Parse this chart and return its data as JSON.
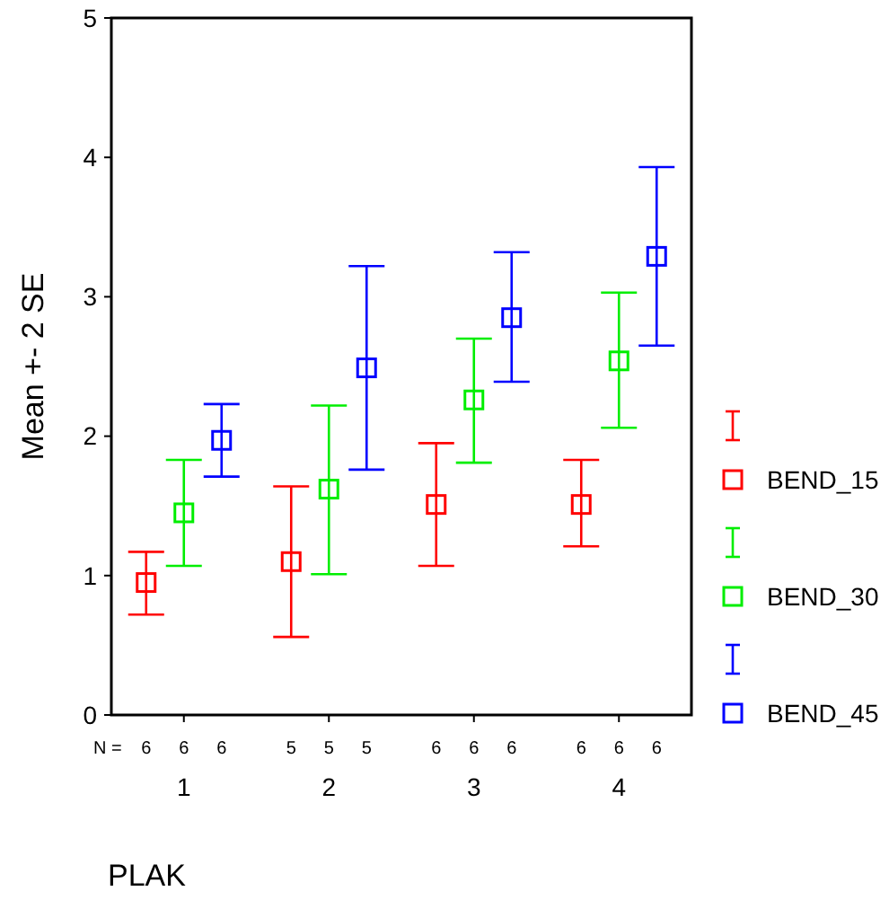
{
  "chart_data": {
    "type": "scatter",
    "xlabel": "PLAK",
    "ylabel": "Mean +- 2 SE",
    "categories": [
      "1",
      "2",
      "3",
      "4"
    ],
    "ylim": [
      0,
      5
    ],
    "yticks": [
      0,
      1,
      2,
      3,
      4,
      5
    ],
    "grid": false,
    "legend": "right",
    "marker": "square",
    "series": [
      {
        "name": "BEND_15",
        "color": "#ff0000",
        "values": [
          0.95,
          1.1,
          1.51,
          1.51
        ],
        "errors": [
          [
            0.72,
            1.17
          ],
          [
            0.56,
            1.64
          ],
          [
            1.07,
            1.95
          ],
          [
            1.21,
            1.83
          ]
        ]
      },
      {
        "name": "BEND_30",
        "color": "#00ee00",
        "values": [
          1.45,
          1.62,
          2.26,
          2.54
        ],
        "errors": [
          [
            1.07,
            1.83
          ],
          [
            1.01,
            2.22
          ],
          [
            1.81,
            2.7
          ],
          [
            2.06,
            3.03
          ]
        ]
      },
      {
        "name": "BEND_45",
        "color": "#0000ff",
        "values": [
          1.97,
          2.49,
          2.85,
          3.29
        ],
        "errors": [
          [
            1.71,
            2.23
          ],
          [
            1.76,
            3.22
          ],
          [
            2.39,
            3.32
          ],
          [
            2.65,
            3.93
          ]
        ]
      }
    ],
    "annotations": [
      "N =",
      "6",
      "6",
      "6",
      "5",
      "5",
      "5",
      "6",
      "6",
      "6",
      "6",
      "6",
      "6"
    ]
  }
}
